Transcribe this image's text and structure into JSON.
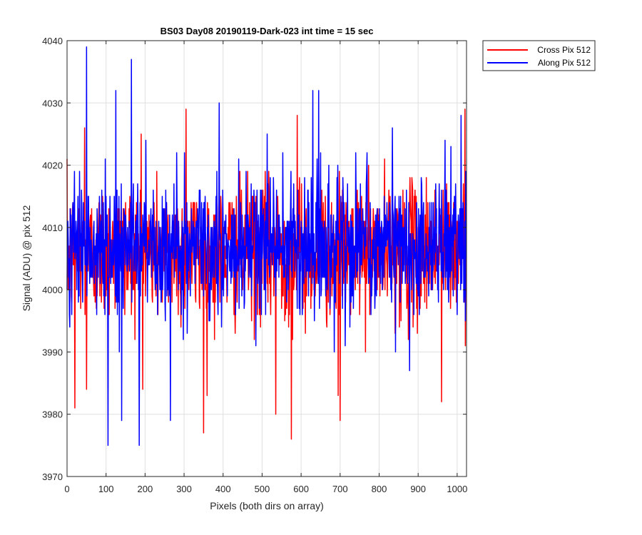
{
  "colors": {
    "cross": "#ff0000",
    "along": "#0000ff",
    "grid": "#dfdfdf",
    "axis": "#262626"
  },
  "chart_data": {
    "type": "line",
    "title": "BS03 Day08 20190119-Dark-023 int time = 15 sec",
    "xlabel": "Pixels (both dirs on array)",
    "ylabel": "Signal (ADU) @ pix 512",
    "xlim": [
      0,
      1024
    ],
    "ylim": [
      3970,
      4040
    ],
    "xticks": [
      0,
      100,
      200,
      300,
      400,
      500,
      600,
      700,
      800,
      900,
      1000
    ],
    "yticks": [
      3970,
      3980,
      3990,
      4000,
      4010,
      4020,
      4030,
      4040
    ],
    "grid": true,
    "legend_position": "outside-top-right",
    "series": [
      {
        "name": "Cross Pix 512",
        "color": "#ff0000",
        "n_points": 1024,
        "mean": 4006,
        "std": 5.5,
        "y_min": 3976,
        "y_max": 4029,
        "features": [
          {
            "x": 20,
            "y": 3981
          },
          {
            "x": 50,
            "y": 3984
          },
          {
            "x": 45,
            "y": 4026
          },
          {
            "x": 190,
            "y": 4025
          },
          {
            "x": 305,
            "y": 4029
          },
          {
            "x": 350,
            "y": 3977
          },
          {
            "x": 535,
            "y": 3980
          },
          {
            "x": 575,
            "y": 3976
          },
          {
            "x": 590,
            "y": 4028
          },
          {
            "x": 695,
            "y": 3983
          },
          {
            "x": 700,
            "y": 3979
          },
          {
            "x": 960,
            "y": 3982
          },
          {
            "x": 1020,
            "y": 4029
          }
        ]
      },
      {
        "name": "Along Pix 512",
        "color": "#0000ff",
        "n_points": 1024,
        "mean": 4007,
        "std": 5.5,
        "y_min": 3975,
        "y_max": 4039,
        "features": [
          {
            "x": 50,
            "y": 4039
          },
          {
            "x": 105,
            "y": 3975
          },
          {
            "x": 125,
            "y": 4032
          },
          {
            "x": 140,
            "y": 3979
          },
          {
            "x": 165,
            "y": 4037
          },
          {
            "x": 185,
            "y": 3975
          },
          {
            "x": 265,
            "y": 3979
          },
          {
            "x": 390,
            "y": 4030
          },
          {
            "x": 630,
            "y": 4032
          },
          {
            "x": 645,
            "y": 4032
          },
          {
            "x": 1010,
            "y": 4028
          }
        ]
      }
    ]
  }
}
